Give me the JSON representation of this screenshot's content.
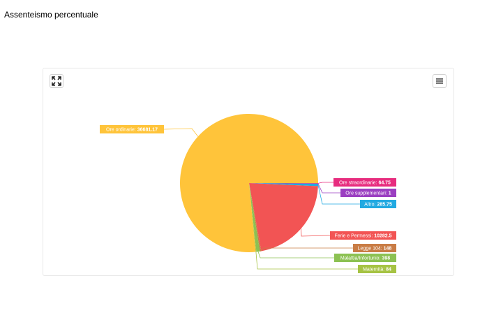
{
  "page": {
    "title": "Assenteismo percentuale"
  },
  "toolbar": {
    "expand_icon": "expand-icon",
    "menu_icon": "hamburger-menu-icon"
  },
  "chart_data": {
    "type": "pie",
    "title": "",
    "slices": [
      {
        "label": "Ore ordinarie",
        "value": 36681.17,
        "display": "36681.17",
        "color": "#ffc43a"
      },
      {
        "label": "Ferie e Permessi",
        "value": 10282.5,
        "display": "10282.5",
        "color": "#f25454"
      },
      {
        "label": "Legge 104",
        "value": 148,
        "display": "148",
        "color": "#c97c45"
      },
      {
        "label": "Malattia/Infortunio",
        "value": 398,
        "display": "398",
        "color": "#8cc152"
      },
      {
        "label": "Maternità",
        "value": 84,
        "display": "84",
        "color": "#a6c343"
      },
      {
        "label": "Ore straordinarie",
        "value": 64.75,
        "display": "64.75",
        "color": "#e72c7e"
      },
      {
        "label": "Ore supplementari",
        "value": 1,
        "display": "1",
        "color": "#9b3fc1"
      },
      {
        "label": "Altro",
        "value": 285.75,
        "display": "285.75",
        "color": "#21a9e1"
      }
    ]
  }
}
